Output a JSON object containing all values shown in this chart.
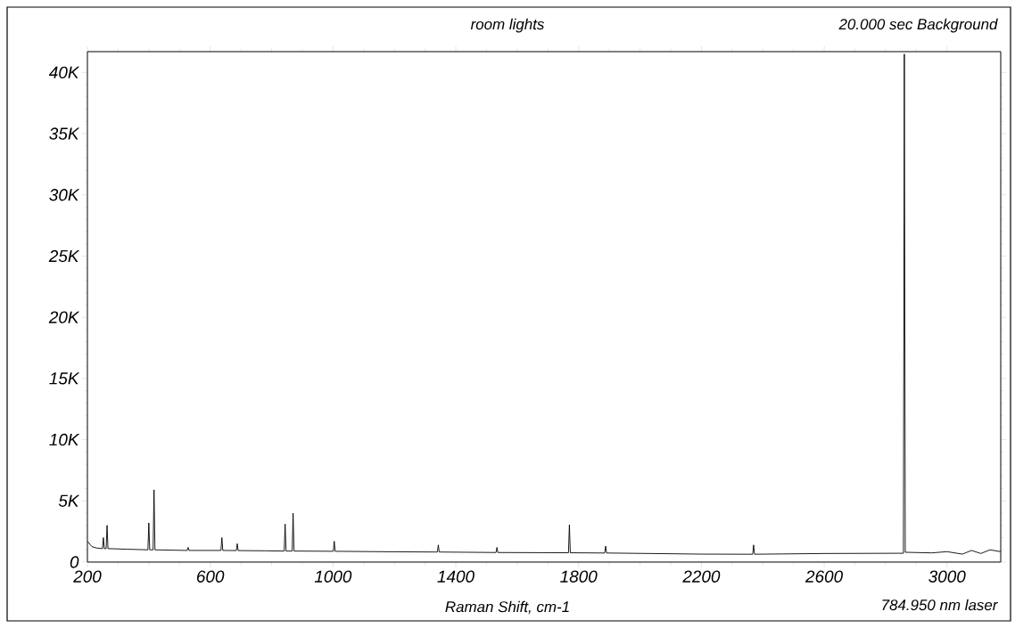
{
  "chart_data": {
    "type": "line",
    "title": "room lights",
    "subtitle": "20.000 sec Background",
    "xlabel": "Raman Shift, cm-1",
    "annotations": [
      "784.950 nm laser"
    ],
    "x": [
      200,
      215,
      230,
      249,
      252,
      255,
      261,
      264,
      267,
      330,
      397,
      400,
      403,
      414,
      417,
      420,
      525,
      528,
      531,
      635,
      638,
      641,
      685,
      688,
      691,
      780,
      841,
      844,
      847,
      867,
      870,
      873,
      1001,
      1004,
      1007,
      1200,
      1340,
      1343,
      1346,
      1531,
      1534,
      1537,
      1767,
      1770,
      1773,
      1885,
      1888,
      1891,
      2100,
      2200,
      2367,
      2370,
      2373,
      2600,
      2858,
      2861,
      2864,
      2950,
      3000,
      3050,
      3080,
      3110,
      3140,
      3175
    ],
    "series": [
      {
        "color": "#000000",
        "values": [
          1700,
          1250,
          1150,
          1100,
          2000,
          1100,
          1100,
          3000,
          1100,
          1050,
          1000,
          3200,
          1000,
          1000,
          5900,
          1000,
          950,
          1200,
          950,
          950,
          2000,
          950,
          940,
          1500,
          940,
          920,
          900,
          3100,
          900,
          900,
          4000,
          900,
          880,
          1700,
          880,
          840,
          820,
          1400,
          820,
          780,
          1200,
          780,
          760,
          3050,
          760,
          740,
          1300,
          740,
          680,
          650,
          640,
          1400,
          640,
          700,
          720,
          41500,
          800,
          750,
          850,
          650,
          950,
          700,
          1000,
          850
        ]
      }
    ],
    "xlim": [
      200,
      3175
    ],
    "ylim": [
      0,
      41700
    ],
    "xticks": [
      200,
      600,
      1000,
      1400,
      1800,
      2200,
      2600,
      3000
    ],
    "yticks": [
      {
        "value": 0,
        "label": "0"
      },
      {
        "value": 5000,
        "label": "5K"
      },
      {
        "value": 10000,
        "label": "10K"
      },
      {
        "value": 15000,
        "label": "15K"
      },
      {
        "value": 20000,
        "label": "20K"
      },
      {
        "value": 25000,
        "label": "25K"
      },
      {
        "value": 30000,
        "label": "30K"
      },
      {
        "value": 35000,
        "label": "35K"
      },
      {
        "value": 40000,
        "label": "40K"
      }
    ],
    "line_style": "solid"
  }
}
